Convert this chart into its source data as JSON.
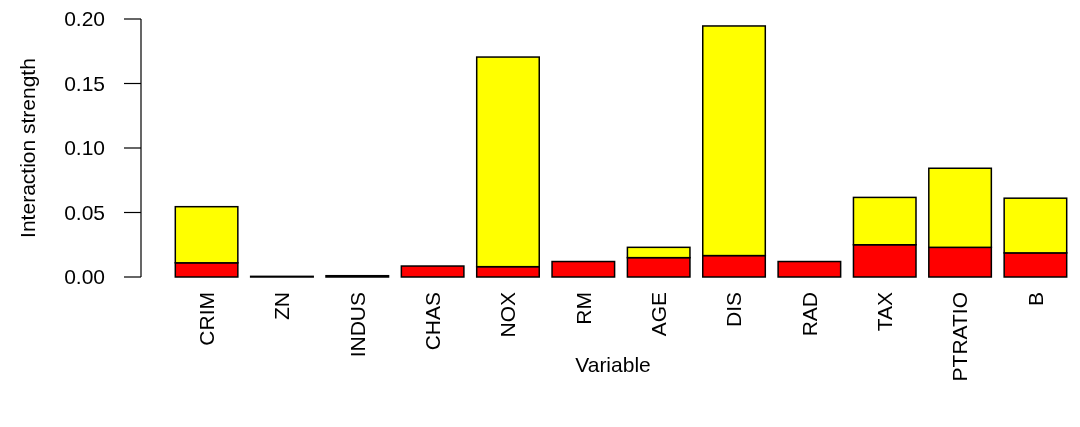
{
  "chart_data": {
    "type": "bar",
    "stacked": true,
    "xlabel": "Variable",
    "ylabel": "Interaction strength",
    "categories": [
      "CRIM",
      "ZN",
      "INDUS",
      "CHAS",
      "NOX",
      "RM",
      "AGE",
      "DIS",
      "RAD",
      "TAX",
      "PTRATIO",
      "B"
    ],
    "series": [
      {
        "color": "#ff0000",
        "values": [
          0.011,
          0.0005,
          0.001,
          0.0085,
          0.008,
          0.012,
          0.015,
          0.0166,
          0.012,
          0.025,
          0.023,
          0.0187
        ]
      },
      {
        "color": "#ffff00",
        "values": [
          0.0435,
          0,
          0,
          0,
          0.1625,
          0,
          0.008,
          0.178,
          0,
          0.0367,
          0.0613,
          0.0424
        ]
      }
    ],
    "ylim": [
      0,
      0.2
    ],
    "yticks": [
      {
        "value": 0,
        "label": "0.00"
      },
      {
        "value": 0.05,
        "label": "0.05"
      },
      {
        "value": 0.1,
        "label": "0.10"
      },
      {
        "value": 0.15,
        "label": "0.15"
      },
      {
        "value": 0.2,
        "label": "0.20"
      }
    ],
    "grid": false
  }
}
